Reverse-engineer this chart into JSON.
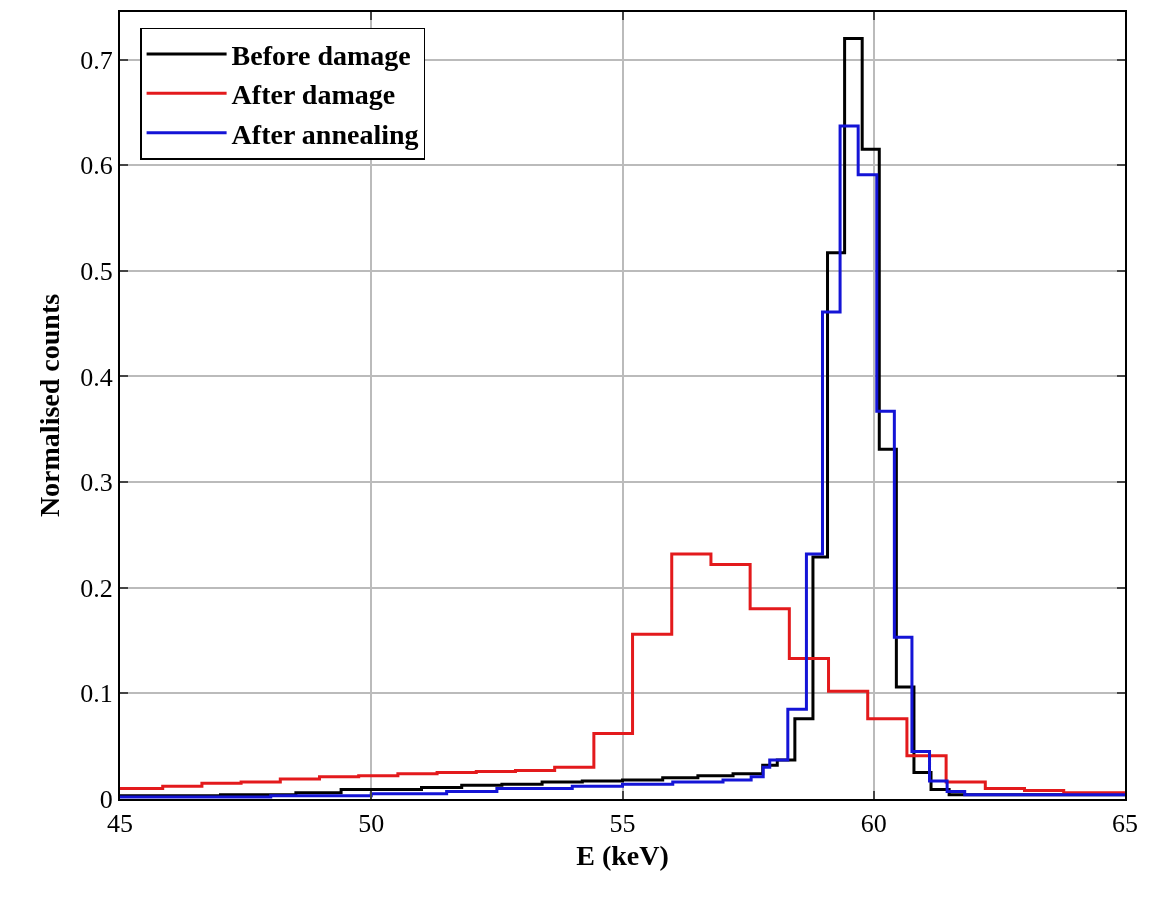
{
  "chart_data": {
    "type": "step",
    "xlabel": "E (keV)",
    "ylabel": "Normalised counts",
    "xlim": [
      45,
      65
    ],
    "xticks": [
      45,
      50,
      55,
      60,
      65
    ],
    "ylim": [
      0,
      0.745
    ],
    "yticks": [
      0,
      0.1,
      0.2,
      0.3,
      0.4,
      0.5,
      0.6,
      0.7
    ],
    "grid": true,
    "legend": "top left",
    "marker": "none",
    "line_style": "solid",
    "series": [
      {
        "name": "Before damage",
        "color": "#000000",
        "x": [
          45,
          47,
          48.5,
          49.4,
          51,
          51.8,
          52.6,
          53.4,
          54.2,
          55,
          55.8,
          56.5,
          57.2,
          57.79,
          58.08,
          58.43,
          58.79,
          59.08,
          59.42,
          59.77,
          60.11,
          60.45,
          60.8,
          61.14,
          61.5,
          65
        ],
        "values": [
          0.003,
          0.004,
          0.006,
          0.009,
          0.011,
          0.013,
          0.014,
          0.016,
          0.017,
          0.018,
          0.02,
          0.022,
          0.024,
          0.032,
          0.037,
          0.076,
          0.229,
          0.517,
          0.72,
          0.615,
          0.331,
          0.106,
          0.025,
          0.009,
          0.004,
          0.004
        ]
      },
      {
        "name": "After damage",
        "color": "#e31a1c",
        "x": [
          45,
          45.85,
          46.63,
          47.41,
          48.19,
          48.97,
          49.75,
          50.53,
          51.31,
          52.09,
          52.87,
          53.65,
          54.43,
          55.2,
          55.98,
          56.76,
          57.54,
          58.32,
          59.1,
          59.88,
          60.66,
          61.44,
          62.22,
          63.0,
          63.78,
          65
        ],
        "values": [
          0.01,
          0.012,
          0.015,
          0.016,
          0.019,
          0.021,
          0.022,
          0.024,
          0.025,
          0.026,
          0.027,
          0.03,
          0.062,
          0.156,
          0.232,
          0.222,
          0.18,
          0.133,
          0.102,
          0.076,
          0.041,
          0.016,
          0.01,
          0.008,
          0.006,
          0.006
        ]
      },
      {
        "name": "After annealing",
        "color": "#1414d6",
        "x": [
          45,
          48,
          50,
          51.5,
          52.5,
          54,
          55,
          56,
          57,
          57.56,
          57.8,
          57.93,
          58.29,
          58.66,
          58.98,
          59.33,
          59.69,
          60.06,
          60.41,
          60.76,
          61.11,
          61.46,
          61.81,
          65
        ],
        "values": [
          0.002,
          0.003,
          0.005,
          0.007,
          0.01,
          0.012,
          0.014,
          0.016,
          0.018,
          0.021,
          0.03,
          0.037,
          0.085,
          0.232,
          0.461,
          0.637,
          0.591,
          0.367,
          0.153,
          0.045,
          0.017,
          0.007,
          0.004,
          0.004
        ]
      }
    ]
  }
}
